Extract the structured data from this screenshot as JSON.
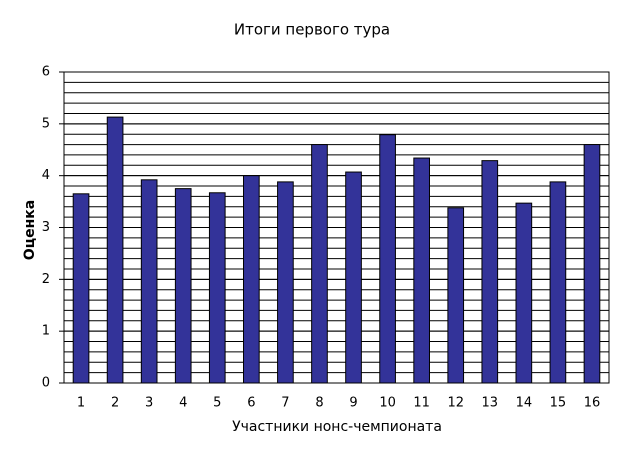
{
  "chart_data": {
    "type": "bar",
    "title": "Итоги первого тура",
    "x_label": "Участники нонс-чемпионата",
    "y_label": "Оценка",
    "categories": [
      "1",
      "2",
      "3",
      "4",
      "5",
      "6",
      "7",
      "8",
      "9",
      "10",
      "11",
      "12",
      "13",
      "14",
      "15",
      "16"
    ],
    "values": [
      3.65,
      5.13,
      3.92,
      3.75,
      3.67,
      4.0,
      3.88,
      4.6,
      4.07,
      4.79,
      4.34,
      3.38,
      4.29,
      3.47,
      3.88,
      4.6
    ],
    "color": "#333399",
    "ylim": [
      0,
      6
    ],
    "yticks": [
      0,
      1,
      2,
      3,
      4,
      5,
      6
    ],
    "grid": true,
    "minor_grid_step": 0.2
  }
}
